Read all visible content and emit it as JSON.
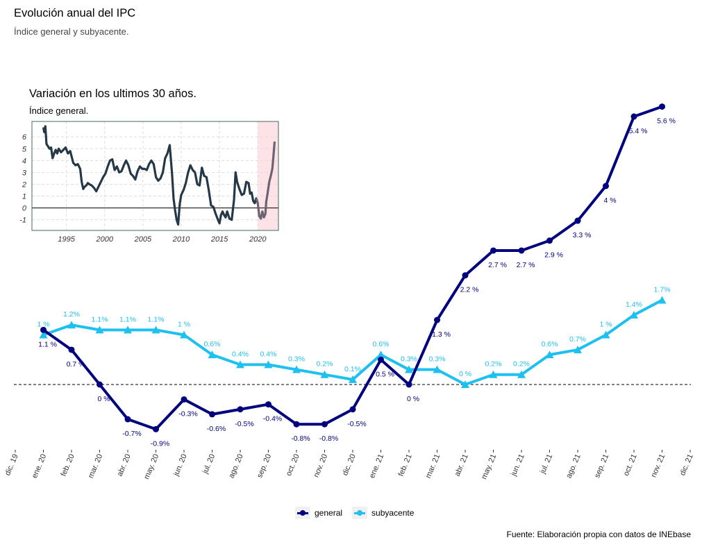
{
  "header": {
    "title": "Evolución anual del IPC",
    "subtitle": "Índice general y subyacente."
  },
  "caption": "Fuente: Elaboración propia con datos de INEbase",
  "colors": {
    "general": "#00007f",
    "subyacente": "#1ec0f0",
    "highlight": "#fde3e8"
  },
  "chart_data": [
    {
      "type": "line",
      "title": "Evolución anual del IPC",
      "subtitle": "Índice general y subyacente.",
      "xlabel": "",
      "ylabel": "",
      "categories": [
        "ene. 20",
        "feb. 20",
        "mar. 20",
        "abr. 20",
        "may. 20",
        "jun. 20",
        "jul. 20",
        "ago. 20",
        "sep. 20",
        "oct. 20",
        "nov. 20",
        "dic. 20",
        "ene. 21",
        "feb. 21",
        "mar. 21",
        "abr. 21",
        "may. 21",
        "jun. 21",
        "jul. 21",
        "ago. 21",
        "sep. 21",
        "oct. 21",
        "nov. 21"
      ],
      "x_tick_labels": [
        "dic. 19",
        "ene. 20",
        "feb. 20",
        "mar. 20",
        "abr. 20",
        "may. 20",
        "jun. 20",
        "jul. 20",
        "ago. 20",
        "sep. 20",
        "oct. 20",
        "nov. 20",
        "dic. 20",
        "ene. 21",
        "feb. 21",
        "mar. 21",
        "abr. 21",
        "may. 21",
        "jun. 21",
        "jul. 21",
        "ago. 21",
        "sep. 21",
        "oct. 21",
        "nov. 21",
        "dic. 21"
      ],
      "series": [
        {
          "name": "general",
          "values": [
            1.1,
            0.7,
            0,
            -0.7,
            -0.9,
            -0.3,
            -0.6,
            -0.5,
            -0.4,
            -0.8,
            -0.8,
            -0.5,
            0.5,
            0,
            1.3,
            2.2,
            2.7,
            2.7,
            2.9,
            3.3,
            4,
            5.4,
            5.6
          ],
          "labels": [
            "1.1 %",
            "0.7 %",
            "0  %",
            "-0.7%",
            "-0.9%",
            "-0.3%",
            "-0.6%",
            "-0.5%",
            "-0.4%",
            "-0.8%",
            "-0.8%",
            "-0.5%",
            "0.5 %",
            "0  %",
            "1.3 %",
            "2.2 %",
            "2.7 %",
            "2.7 %",
            "2.9 %",
            "3.3 %",
            "4  %",
            "5.4 %",
            "5.6 %"
          ]
        },
        {
          "name": "subyacente",
          "values": [
            1,
            1.2,
            1.1,
            1.1,
            1.1,
            1,
            0.6,
            0.4,
            0.4,
            0.3,
            0.2,
            0.1,
            0.6,
            0.3,
            0.3,
            0,
            0.2,
            0.2,
            0.6,
            0.7,
            1,
            1.4,
            1.7
          ],
          "labels": [
            "1 %",
            "1.2%",
            "1.1%",
            "1.1%",
            "1.1%",
            "1 %",
            "0.6%",
            "0.4%",
            "0.4%",
            "0.3%",
            "0.2%",
            "0.1%",
            "0.6%",
            "0.3%",
            "0.3%",
            "0 %",
            "0.2%",
            "0.2%",
            "0.6%",
            "0.7%",
            "1 %",
            "1.4%",
            "1.7%"
          ]
        }
      ],
      "reference_line": 0,
      "grid": false,
      "legend": "bottom"
    },
    {
      "type": "line",
      "title": "Variación en los ultimos 30 años.",
      "subtitle": "Índice general.",
      "xlabel": "",
      "ylabel": "",
      "x_ticks": [
        1995,
        2000,
        2005,
        2010,
        2015,
        2020
      ],
      "y_ticks": [
        -1,
        0,
        1,
        2,
        3,
        4,
        5,
        6
      ],
      "xlim": [
        1990.5,
        2022.7
      ],
      "ylim": [
        -1.9,
        7.3
      ],
      "highlight_range": [
        2020.0,
        2022.8
      ],
      "grid": true,
      "x": [
        1992.0,
        1992.1,
        1992.25,
        1992.4,
        1992.6,
        1992.8,
        1993.0,
        1993.2,
        1993.4,
        1993.6,
        1993.8,
        1994.0,
        1994.3,
        1994.6,
        1994.9,
        1995.2,
        1995.5,
        1995.7,
        1995.9,
        1996.2,
        1996.5,
        1996.8,
        1997.0,
        1997.2,
        1997.4,
        1997.6,
        1997.8,
        1998.0,
        1998.3,
        1998.6,
        1998.9,
        1999.2,
        1999.5,
        1999.8,
        2000.1,
        2000.4,
        2000.7,
        2001.0,
        2001.3,
        2001.6,
        2001.9,
        2002.2,
        2002.5,
        2002.8,
        2003.1,
        2003.4,
        2003.7,
        2004.0,
        2004.3,
        2004.6,
        2004.9,
        2005.2,
        2005.5,
        2005.8,
        2006.1,
        2006.4,
        2006.7,
        2007.0,
        2007.3,
        2007.6,
        2007.9,
        2008.2,
        2008.5,
        2008.8,
        2009.0,
        2009.2,
        2009.4,
        2009.6,
        2009.8,
        2010.0,
        2010.3,
        2010.6,
        2010.9,
        2011.2,
        2011.5,
        2011.8,
        2012.1,
        2012.4,
        2012.7,
        2013.0,
        2013.3,
        2013.6,
        2013.9,
        2014.2,
        2014.5,
        2014.8,
        2015.0,
        2015.2,
        2015.4,
        2015.6,
        2015.8,
        2016.0,
        2016.3,
        2016.6,
        2016.9,
        2017.1,
        2017.3,
        2017.6,
        2017.9,
        2018.2,
        2018.5,
        2018.8,
        2019.0,
        2019.2,
        2019.4,
        2019.6,
        2019.8,
        2020.0,
        2020.2,
        2020.4,
        2020.6,
        2020.8,
        2021.0,
        2021.1,
        2021.3,
        2021.5,
        2021.7,
        2021.9,
        2022.0,
        2022.2
      ],
      "values": [
        6.8,
        6.4,
        6.9,
        5.4,
        5.2,
        5.0,
        5.1,
        4.2,
        4.6,
        4.9,
        4.6,
        5.0,
        4.7,
        4.9,
        5.1,
        4.6,
        4.8,
        4.3,
        3.8,
        3.6,
        3.7,
        3.3,
        2.2,
        1.6,
        1.8,
        1.9,
        2.1,
        2.0,
        1.9,
        1.7,
        1.4,
        1.8,
        2.2,
        2.6,
        2.9,
        3.5,
        4.0,
        4.1,
        3.2,
        3.5,
        3.0,
        3.1,
        3.6,
        4.0,
        3.6,
        2.9,
        2.7,
        2.4,
        3.1,
        3.5,
        3.3,
        3.3,
        3.2,
        3.7,
        4.0,
        3.7,
        2.6,
        2.3,
        2.5,
        3.0,
        4.2,
        4.6,
        5.3,
        2.9,
        0.8,
        -0.2,
        -1.0,
        -1.4,
        0.3,
        1.1,
        1.5,
        2.1,
        3.0,
        3.6,
        3.2,
        3.0,
        2.0,
        1.9,
        3.4,
        2.7,
        2.6,
        1.5,
        0.2,
        0.1,
        -0.5,
        -1.0,
        -1.3,
        -0.6,
        -0.3,
        -0.6,
        -0.8,
        -0.3,
        -0.9,
        -1.0,
        0.7,
        3.0,
        2.2,
        1.6,
        1.1,
        1.2,
        2.2,
        2.1,
        1.2,
        1.3,
        0.6,
        0.4,
        0.8,
        0.4,
        -0.7,
        -0.9,
        -0.3,
        -0.8,
        -0.5,
        0.5,
        1.3,
        2.2,
        2.7,
        3.3,
        4.0,
        5.6
      ]
    }
  ],
  "legend": {
    "general_label": "general",
    "subyacente_label": "subyacente"
  },
  "inset": {
    "title": "Variación en los ultimos 30 años.",
    "subtitle": "Índice general."
  }
}
